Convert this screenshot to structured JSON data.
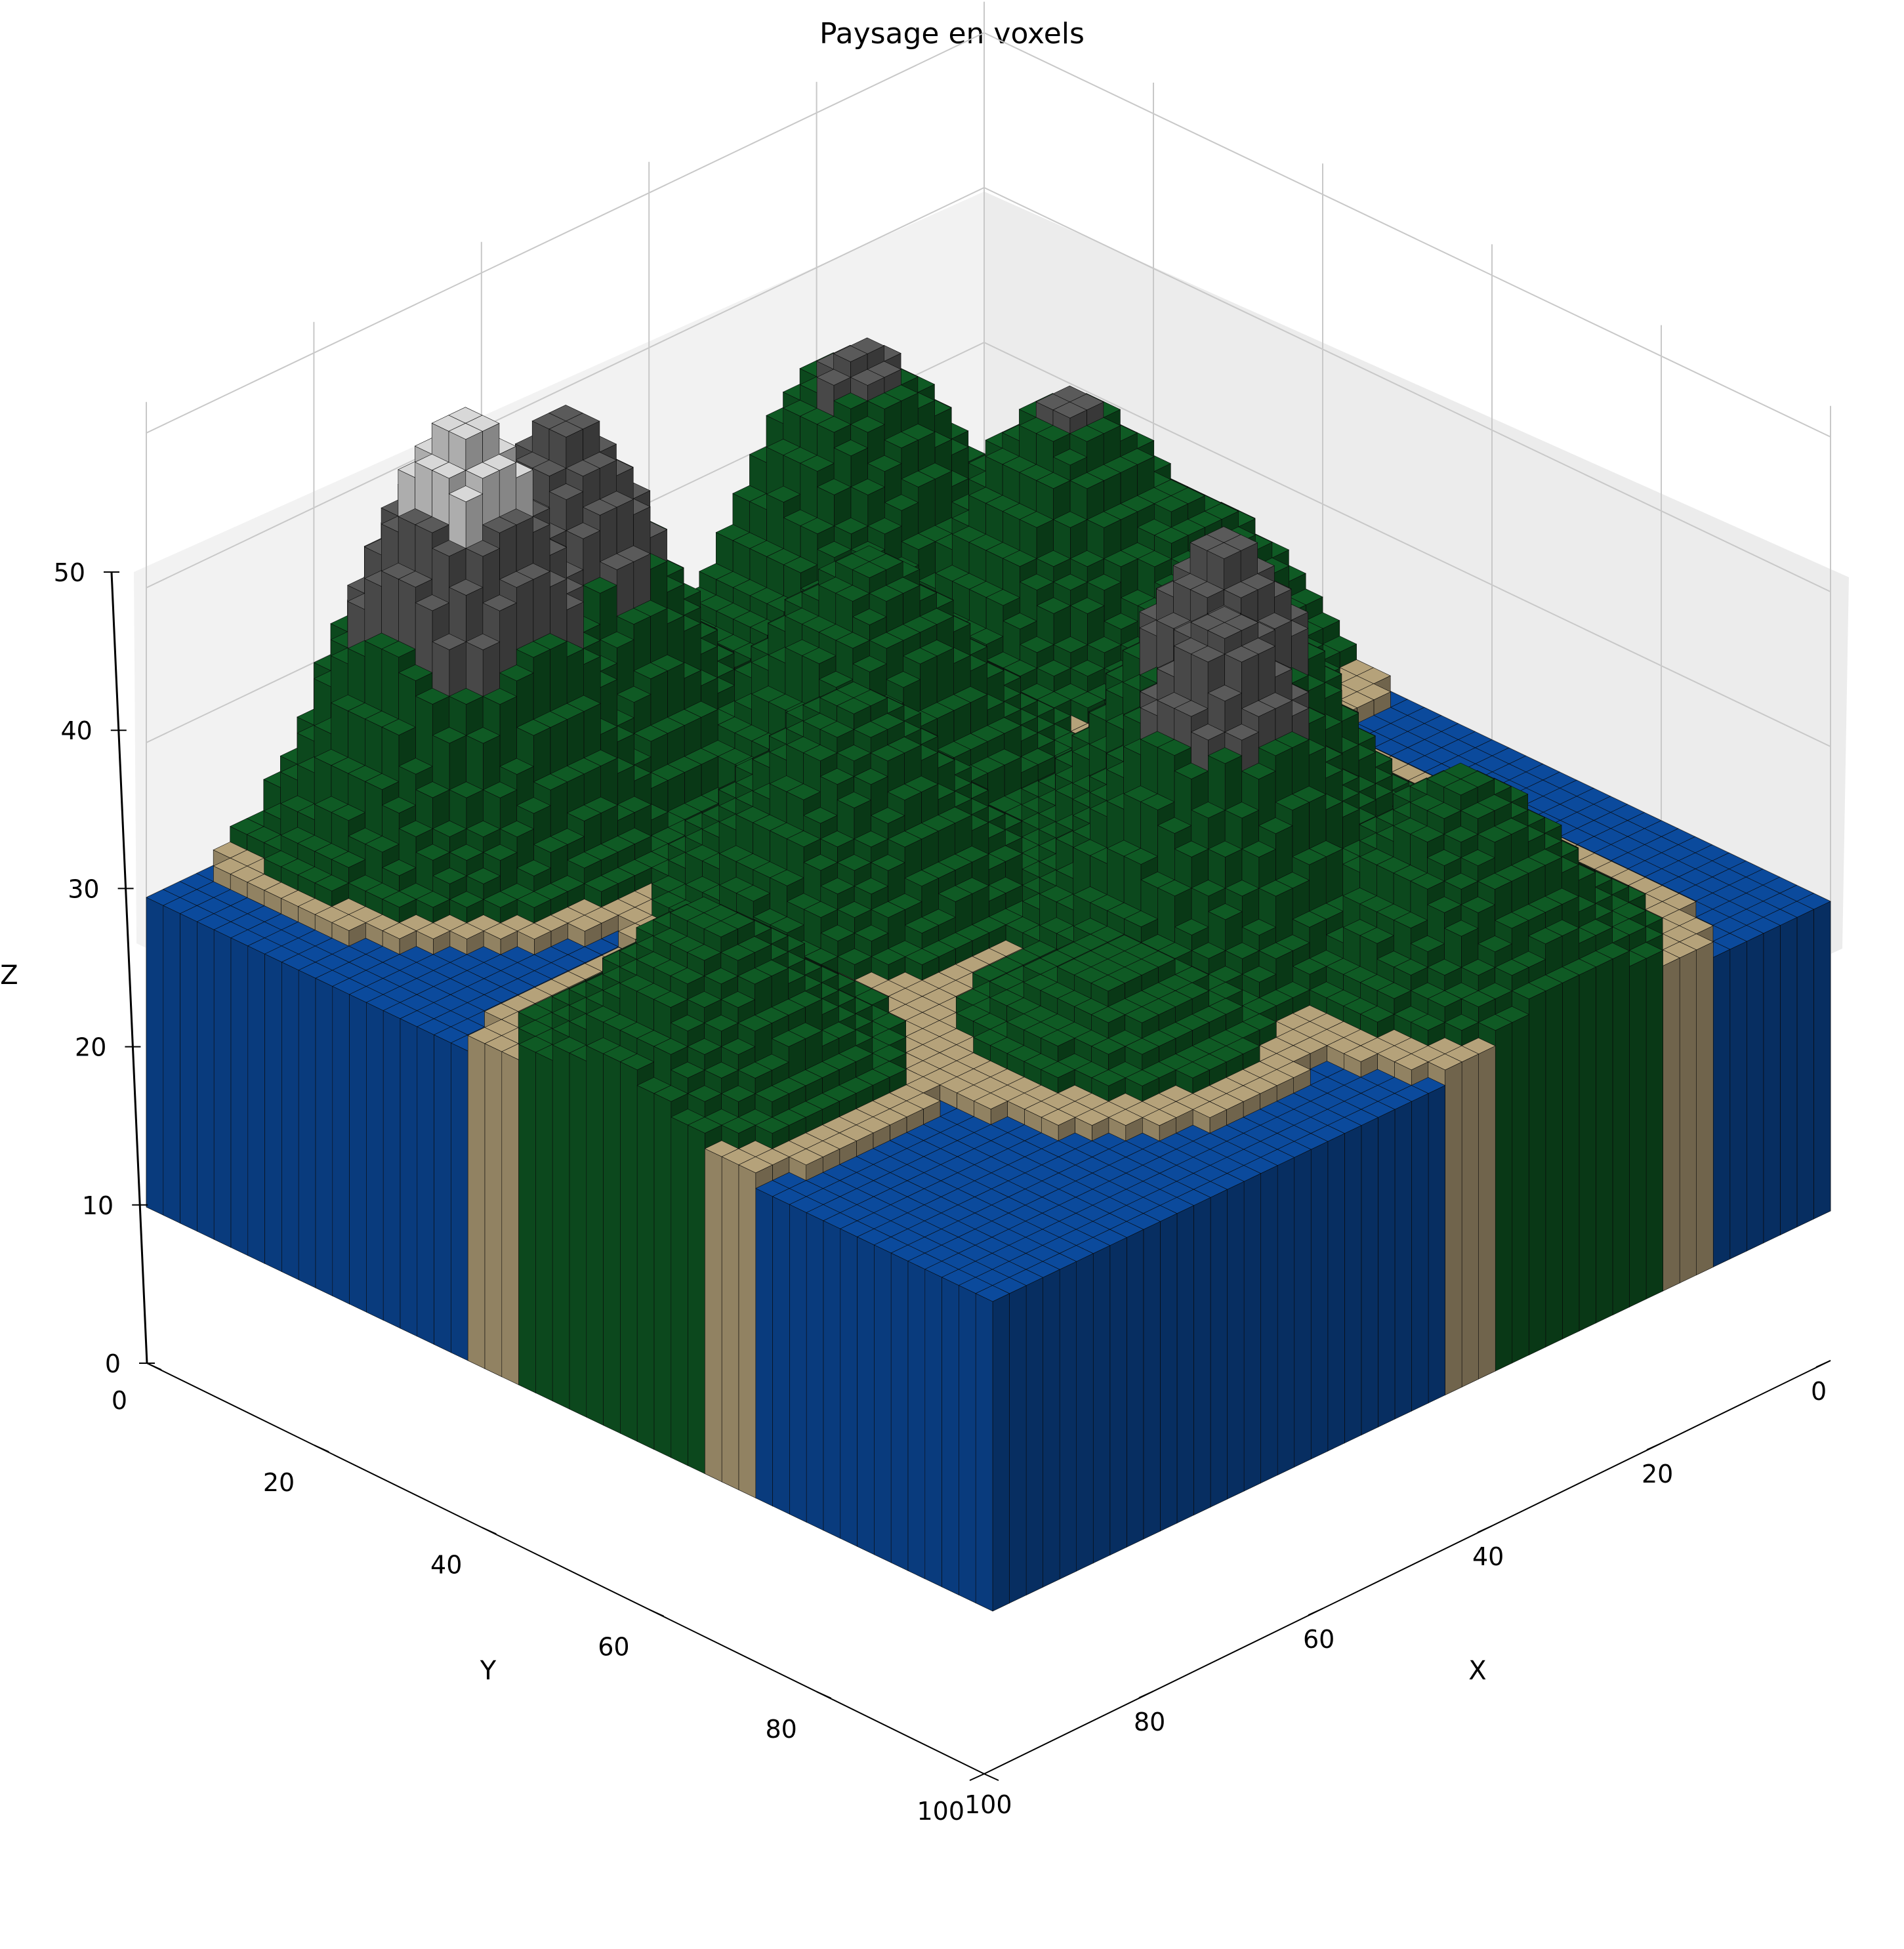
{
  "chart_data": {
    "type": "voxel-3d",
    "title": "Paysage en voxels",
    "xlabel": "X",
    "ylabel": "Y",
    "zlabel": "Z",
    "xlim": [
      0,
      100
    ],
    "ylim": [
      0,
      100
    ],
    "zlim": [
      0,
      50
    ],
    "x_ticks": [
      "0",
      "20",
      "40",
      "60",
      "80",
      "100"
    ],
    "y_ticks": [
      "0",
      "20",
      "40",
      "60",
      "80",
      "100"
    ],
    "z_ticks": [
      "0",
      "10",
      "20",
      "30",
      "40",
      "50"
    ],
    "grid": true,
    "water_level": 20,
    "materials": [
      {
        "color": "#0b4a9c"
      },
      {
        "color": "#b5a27a"
      },
      {
        "color": "#0f5a24"
      },
      {
        "color": "#5a5a5a"
      },
      {
        "color": "#d8d8d8"
      }
    ],
    "peaks": [
      {
        "x": 10,
        "y": 72,
        "h": 46
      },
      {
        "x": 8,
        "y": 58,
        "h": 42
      },
      {
        "x": 28,
        "y": 42,
        "h": 34
      },
      {
        "x": 42,
        "y": 58,
        "h": 33
      },
      {
        "x": 60,
        "y": 32,
        "h": 41
      },
      {
        "x": 68,
        "y": 40,
        "h": 40
      },
      {
        "x": 75,
        "y": 60,
        "h": 25
      },
      {
        "x": 55,
        "y": 88,
        "h": 30
      },
      {
        "x": 5,
        "y": 20,
        "h": 36
      },
      {
        "x": 22,
        "y": 12,
        "h": 35
      },
      {
        "x": 30,
        "y": 8,
        "h": 30
      },
      {
        "x": 86,
        "y": 30,
        "h": 32
      }
    ]
  }
}
